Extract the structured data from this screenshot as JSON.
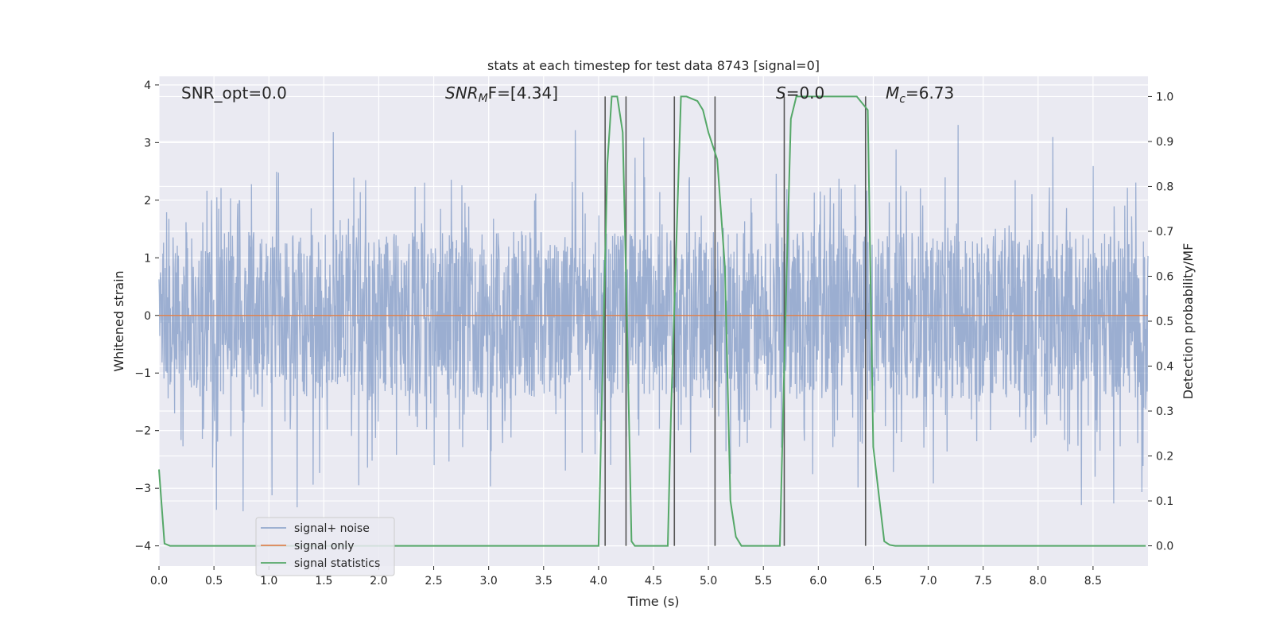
{
  "chart_data": {
    "type": "line",
    "title": "stats at each timestep for test data 8743 [signal=0]",
    "xlabel": "Time (s)",
    "ylabel_left": "Whitened strain",
    "ylabel_right": "Detection probability/MF",
    "xlim": [
      0.0,
      9.0
    ],
    "ylim_left": [
      -4.35,
      4.15
    ],
    "ylim_right": [
      -0.045,
      1.045
    ],
    "x_ticks": [
      "0.0",
      "0.5",
      "1.0",
      "1.5",
      "2.0",
      "2.5",
      "3.0",
      "3.5",
      "4.0",
      "4.5",
      "5.0",
      "5.5",
      "6.0",
      "6.5",
      "7.0",
      "7.5",
      "8.0",
      "8.5"
    ],
    "y_ticks_left": [
      "−4",
      "−3",
      "−2",
      "−1",
      "0",
      "1",
      "2",
      "3",
      "4"
    ],
    "y_ticks_right": [
      "0.0",
      "0.1",
      "0.2",
      "0.3",
      "0.4",
      "0.5",
      "0.6",
      "0.7",
      "0.8",
      "0.9",
      "1.0"
    ],
    "grid": true,
    "legend_position": "bottom-left",
    "annotations": {
      "snr_opt": "SNR_opt=0.0",
      "snr_mf_main": "SNR",
      "snr_mf_sub": "M",
      "snr_mf_tail": "F=[4.34]",
      "s_label": "S",
      "s_value": "=0.0",
      "mc_main": "M",
      "mc_sub": "c",
      "mc_value": "=6.73"
    },
    "series": [
      {
        "name": "signal+ noise",
        "color": "#4c72b0",
        "axis": "left",
        "description": "dense noise trace, roughly uniform amplitude ±1.5 with spikes up to ±3.5"
      },
      {
        "name": "signal only",
        "color": "#dd8452",
        "axis": "left",
        "x": [
          0.0,
          9.0
        ],
        "y": [
          0.0,
          0.0
        ]
      },
      {
        "name": "signal statistics",
        "color": "#55a868",
        "axis": "right",
        "x": [
          0.0,
          0.05,
          0.1,
          3.95,
          4.0,
          4.08,
          4.12,
          4.17,
          4.22,
          4.25,
          4.3,
          4.33,
          4.63,
          4.66,
          4.75,
          4.8,
          4.9,
          4.95,
          5.0,
          5.08,
          5.15,
          5.2,
          5.25,
          5.3,
          5.65,
          5.7,
          5.75,
          5.8,
          6.35,
          6.45,
          6.5,
          6.6,
          6.65,
          6.7,
          8.98
        ],
        "y": [
          0.17,
          0.005,
          0.0,
          0.0,
          0.0,
          0.85,
          1.0,
          1.0,
          0.92,
          0.6,
          0.01,
          0.0,
          0.0,
          0.3,
          1.0,
          1.0,
          0.99,
          0.97,
          0.92,
          0.86,
          0.62,
          0.1,
          0.02,
          0.0,
          0.0,
          0.5,
          0.95,
          1.0,
          1.0,
          0.97,
          0.22,
          0.01,
          0.002,
          0.0,
          0.0
        ]
      }
    ],
    "vertical_markers": {
      "color": "#555555",
      "x": [
        4.06,
        4.25,
        4.69,
        5.06,
        5.69,
        6.43
      ]
    }
  }
}
